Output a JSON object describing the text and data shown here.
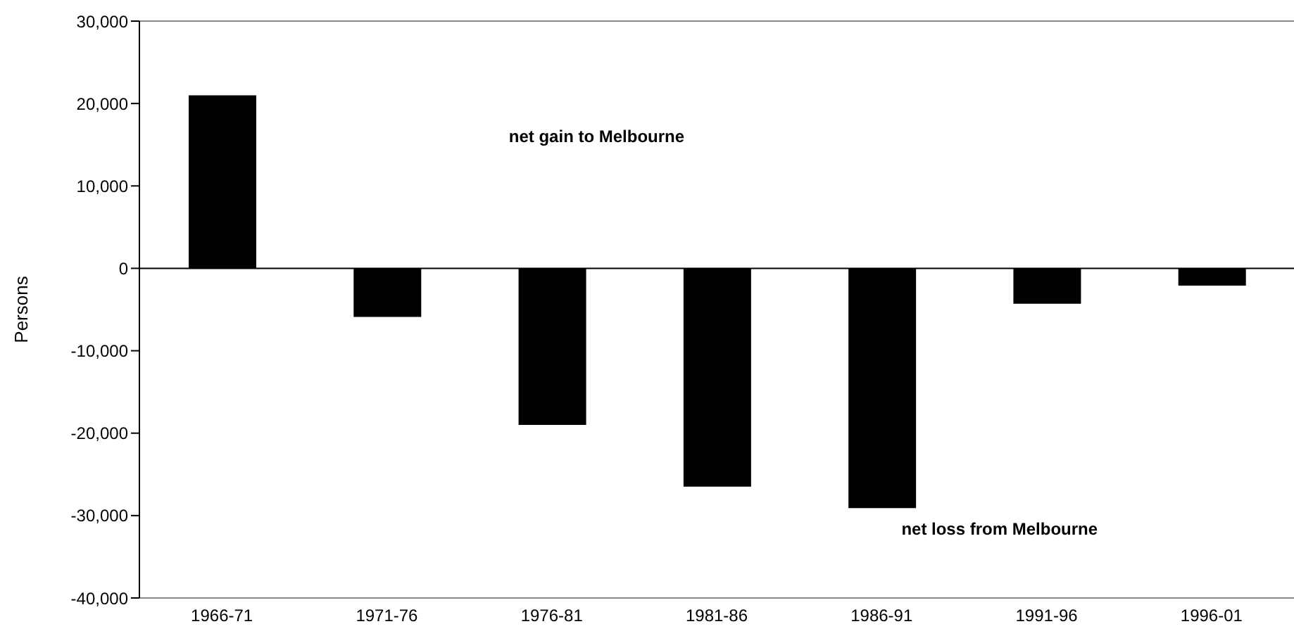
{
  "chart_data": {
    "type": "bar",
    "ylabel": "Persons",
    "categories": [
      "1966-71",
      "1971-76",
      "1976-81",
      "1981-86",
      "1986-91",
      "1991-96",
      "1996-01"
    ],
    "values": [
      21000,
      -5900,
      -19000,
      -26500,
      -29100,
      -4300,
      -2100
    ],
    "color": "#000000",
    "ylim": [
      -40000,
      30000
    ],
    "yticks": [
      {
        "value": -40000,
        "label": "-40,000"
      },
      {
        "value": -30000,
        "label": "-30,000"
      },
      {
        "value": -20000,
        "label": "-20,000"
      },
      {
        "value": -10000,
        "label": "-10,000"
      },
      0,
      {
        "value": 10000,
        "label": "10,000"
      },
      {
        "value": 20000,
        "label": "20,000"
      },
      {
        "value": 30000,
        "label": "30,000"
      }
    ],
    "ref_lines": [
      {
        "axis": "y",
        "value": 0,
        "color": "#000000"
      }
    ],
    "annotations": [
      "net gain to Melbourne",
      "net loss from Melbourne"
    ],
    "grid": false,
    "legend": false
  }
}
